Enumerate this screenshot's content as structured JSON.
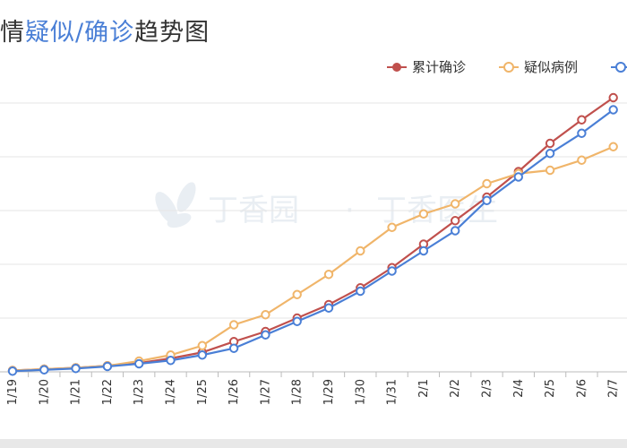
{
  "title": {
    "prefix": "情",
    "part1": "疑似",
    "sep": "/",
    "part2": "确诊",
    "suffix": "趋势图"
  },
  "watermark": {
    "left": "丁香园",
    "dot": "·",
    "right": "丁香医生"
  },
  "colors": {
    "confirmed": "#c0504d",
    "suspected": "#f0b56a",
    "third": "#4a7fd6",
    "grid": "#e6e6e6",
    "axis": "#bbbbbb"
  },
  "chart_data": {
    "type": "line",
    "title": "情疑似/确诊趋势图",
    "categories": [
      "1/19",
      "1/20",
      "1/21",
      "1/22",
      "1/23",
      "1/24",
      "1/25",
      "1/26",
      "1/27",
      "1/28",
      "1/29",
      "1/30",
      "1/31",
      "2/1",
      "2/2",
      "2/3",
      "2/4",
      "2/5",
      "2/6",
      "2/7"
    ],
    "ylim": [
      0,
      40
    ],
    "grid": true,
    "legend_position": "top-right",
    "series": [
      {
        "name": "累计确诊",
        "color": "#c0504d",
        "values": [
          0.2,
          0.4,
          0.6,
          0.9,
          1.3,
          2.0,
          2.9,
          4.5,
          6.0,
          8.0,
          10.0,
          12.5,
          15.5,
          19.0,
          22.5,
          26.0,
          29.8,
          34.0,
          37.5,
          40.8
        ]
      },
      {
        "name": "疑似病例",
        "color": "#f0b56a",
        "values": [
          0.2,
          0.4,
          0.6,
          0.9,
          1.6,
          2.5,
          3.9,
          7.0,
          8.5,
          11.5,
          14.5,
          18.0,
          21.5,
          23.5,
          25.0,
          28.0,
          29.5,
          30.0,
          31.5,
          33.5
        ]
      },
      {
        "name": "",
        "color": "#4a7fd6",
        "values": [
          0.1,
          0.3,
          0.5,
          0.8,
          1.2,
          1.7,
          2.5,
          3.5,
          5.5,
          7.5,
          9.5,
          12.0,
          15.0,
          18.0,
          21.0,
          25.5,
          29.0,
          32.5,
          35.5,
          39.0
        ]
      }
    ]
  }
}
